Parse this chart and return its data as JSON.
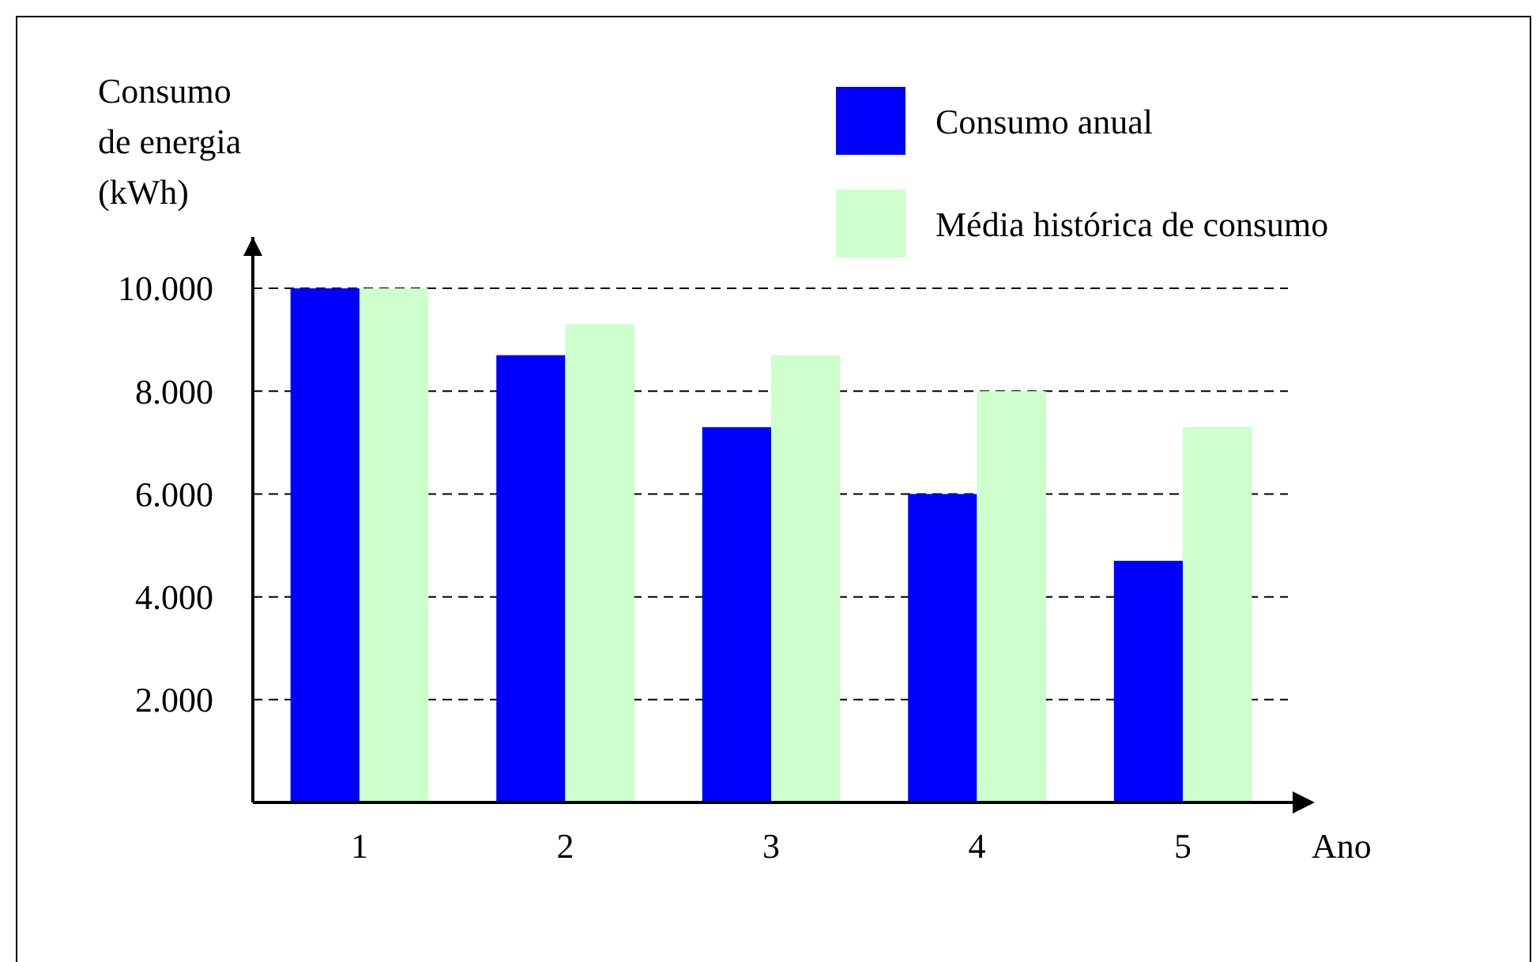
{
  "chart_data": {
    "type": "bar",
    "xlabel": "Ano",
    "ylabel": "Consumo\nde energia\n(kWh)",
    "categories": [
      "1",
      "2",
      "3",
      "4",
      "5"
    ],
    "series": [
      {
        "name": "Consumo anual",
        "color": "#0000ff",
        "values": [
          10000,
          8700,
          7300,
          6000,
          4700
        ]
      },
      {
        "name": "Média histórica de consumo",
        "color": "#ccffcc",
        "values": [
          10000,
          9300,
          8700,
          8000,
          7300
        ]
      }
    ],
    "ylim": [
      0,
      11000
    ],
    "yticks": [
      {
        "value": 2000,
        "label": "2.000"
      },
      {
        "value": 4000,
        "label": "4.000"
      },
      {
        "value": 6000,
        "label": "6.000"
      },
      {
        "value": 8000,
        "label": "8.000"
      },
      {
        "value": 10000,
        "label": "10.000"
      }
    ],
    "grid": "y",
    "line_style": "dashed",
    "legend": "top right"
  }
}
